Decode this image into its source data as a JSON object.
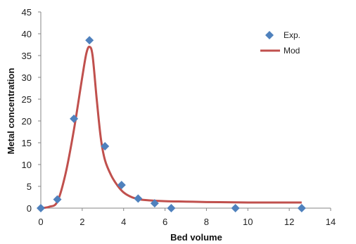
{
  "chart_data": {
    "type": "scatter",
    "title": "",
    "xlabel": "Bed volume",
    "ylabel": "Metal concentration",
    "xlim": [
      0,
      14
    ],
    "ylim": [
      0,
      45
    ],
    "x_ticks": [
      0,
      2,
      4,
      6,
      8,
      10,
      12,
      14
    ],
    "y_ticks": [
      0,
      5,
      10,
      15,
      20,
      25,
      30,
      35,
      40,
      45
    ],
    "grid": false,
    "legend_position": "top-right",
    "series": [
      {
        "name": "Exp.",
        "kind": "scatter",
        "marker": "diamond",
        "color": "#4F81BD",
        "x": [
          0,
          0.8,
          1.6,
          2.35,
          3.1,
          3.9,
          4.7,
          5.5,
          6.3,
          9.4,
          12.6
        ],
        "y": [
          0,
          2,
          20.5,
          38.5,
          14.2,
          5.3,
          2.2,
          1.1,
          0,
          0,
          0
        ]
      },
      {
        "name": "Mod",
        "kind": "line",
        "color": "#C0504D",
        "x": [
          0,
          0.4,
          0.8,
          1.2,
          1.6,
          2.0,
          2.2,
          2.35,
          2.5,
          2.7,
          2.9,
          3.1,
          3.4,
          3.7,
          4.0,
          4.4,
          4.8,
          5.2,
          6.0,
          7.0,
          8.0,
          9.0,
          10.0,
          11.0,
          12.6
        ],
        "y": [
          0,
          0.3,
          1.5,
          8,
          18,
          30,
          35.5,
          37,
          35,
          25,
          16,
          11,
          7.5,
          5.2,
          3.6,
          2.5,
          2.0,
          1.8,
          1.6,
          1.5,
          1.4,
          1.35,
          1.3,
          1.3,
          1.3
        ]
      }
    ]
  }
}
